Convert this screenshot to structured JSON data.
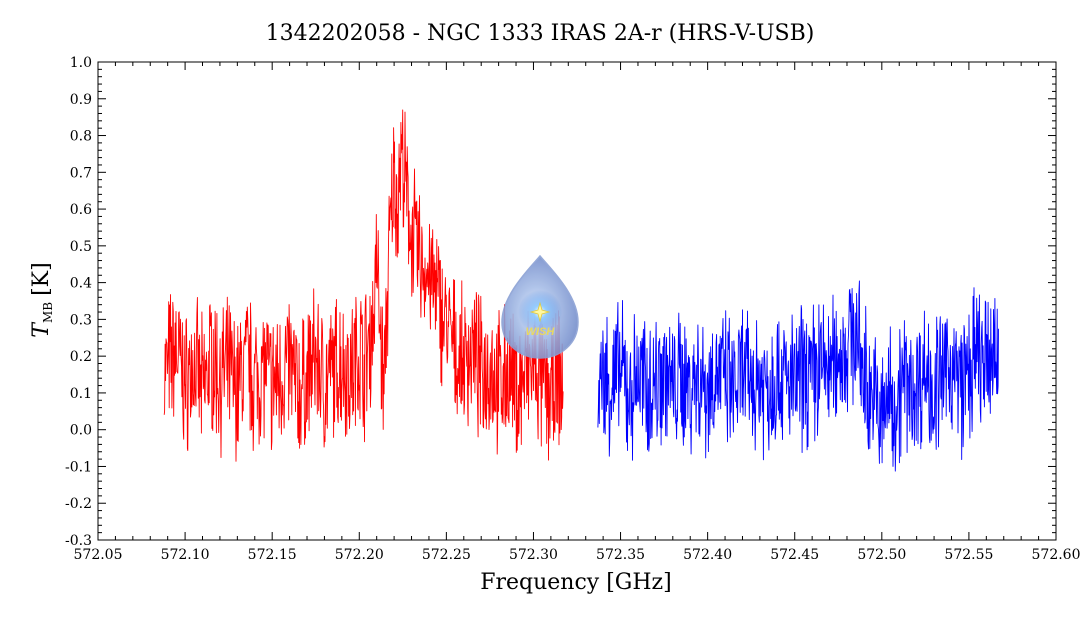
{
  "chart_data": {
    "type": "line",
    "title": "1342202058 - NGC 1333 IRAS 2A-r (HRS-V-USB)",
    "xlabel": "Frequency [GHz]",
    "ylabel": {
      "main": "T",
      "sub": "MB",
      "unit": "[K]"
    },
    "xlim": [
      572.05,
      572.6
    ],
    "ylim": [
      -0.3,
      1.0
    ],
    "xticks": [
      572.05,
      572.1,
      572.15,
      572.2,
      572.25,
      572.3,
      572.35,
      572.4,
      572.45,
      572.5,
      572.55,
      572.6
    ],
    "xtick_labels": [
      "572.05",
      "572.10",
      "572.15",
      "572.20",
      "572.25",
      "572.30",
      "572.35",
      "572.40",
      "572.45",
      "572.50",
      "572.55",
      "572.60"
    ],
    "yticks": [
      -0.3,
      -0.2,
      -0.1,
      0.0,
      0.1,
      0.2,
      0.3,
      0.4,
      0.5,
      0.6,
      0.7,
      0.8,
      0.9,
      1.0
    ],
    "ytick_labels": [
      "-0.3",
      "-0.2",
      "-0.1",
      "0.0",
      "0.1",
      "0.2",
      "0.3",
      "0.4",
      "0.5",
      "0.6",
      "0.7",
      "0.8",
      "0.9",
      "1.0"
    ],
    "grid": false,
    "series": [
      {
        "color": "#ff0000",
        "x": [
          572.088,
          572.095,
          572.1,
          572.105,
          572.11,
          572.115,
          572.12,
          572.125,
          572.13,
          572.135,
          572.14,
          572.145,
          572.15,
          572.155,
          572.16,
          572.165,
          572.17,
          572.175,
          572.18,
          572.185,
          572.19,
          572.195,
          572.2,
          572.203,
          572.206,
          572.208,
          572.21,
          572.212,
          572.214,
          572.216,
          572.218,
          572.22,
          572.222,
          572.224,
          572.226,
          572.228,
          572.23,
          572.233,
          572.236,
          572.24,
          572.243,
          572.246,
          572.25,
          572.253,
          572.256,
          572.26,
          572.265,
          572.27,
          572.275,
          572.28,
          572.285,
          572.29,
          572.295,
          572.3,
          572.305,
          572.31,
          572.315,
          572.317
        ],
        "y": [
          0.15,
          0.22,
          0.12,
          0.18,
          0.1,
          0.2,
          0.14,
          0.16,
          0.11,
          0.19,
          0.13,
          0.17,
          0.12,
          0.15,
          0.18,
          0.1,
          0.14,
          0.2,
          0.12,
          0.16,
          0.19,
          0.15,
          0.22,
          0.18,
          0.24,
          0.3,
          0.46,
          0.28,
          0.1,
          0.35,
          0.55,
          0.7,
          0.62,
          0.75,
          0.68,
          0.58,
          0.55,
          0.48,
          0.45,
          0.42,
          0.38,
          0.34,
          0.28,
          0.24,
          0.2,
          0.18,
          0.22,
          0.15,
          0.18,
          0.12,
          0.16,
          0.1,
          0.14,
          0.17,
          0.12,
          0.09,
          0.15,
          0.08
        ]
      },
      {
        "color": "#0000ff",
        "x": [
          572.337,
          572.34,
          572.345,
          572.35,
          572.355,
          572.36,
          572.365,
          572.37,
          572.375,
          572.38,
          572.385,
          572.39,
          572.395,
          572.4,
          572.405,
          572.41,
          572.415,
          572.42,
          572.425,
          572.43,
          572.435,
          572.44,
          572.445,
          572.45,
          572.455,
          572.46,
          572.465,
          572.47,
          572.475,
          572.48,
          572.484,
          572.488,
          572.492,
          572.496,
          572.5,
          572.504,
          572.508,
          572.512,
          572.516,
          572.52,
          572.525,
          572.53,
          572.535,
          572.54,
          572.545,
          572.55,
          572.555,
          572.56,
          572.565,
          572.567
        ],
        "y": [
          0.1,
          0.14,
          0.12,
          0.16,
          0.09,
          0.15,
          0.11,
          0.13,
          0.17,
          0.1,
          0.14,
          0.12,
          0.15,
          0.11,
          0.16,
          0.13,
          0.1,
          0.15,
          0.12,
          0.14,
          0.11,
          0.16,
          0.13,
          0.12,
          0.15,
          0.14,
          0.18,
          0.16,
          0.2,
          0.22,
          0.28,
          0.18,
          0.12,
          0.08,
          0.02,
          0.1,
          0.06,
          0.14,
          0.1,
          0.12,
          0.16,
          0.11,
          0.14,
          0.18,
          0.12,
          0.15,
          0.2,
          0.16,
          0.22,
          0.18
        ]
      }
    ]
  },
  "logo": {
    "text": "WISH"
  }
}
